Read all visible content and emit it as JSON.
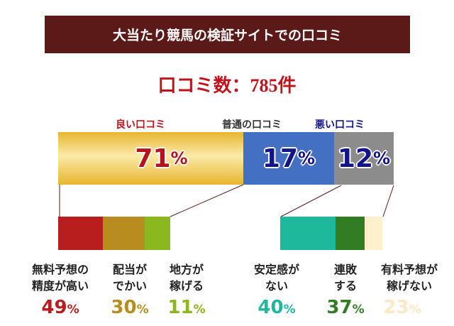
{
  "title": "大当たり競馬の検証サイトでの口コミ",
  "count_label": "口コミ数：785件",
  "main_bar": [
    {
      "label": "良い口コミ",
      "value": "71",
      "unit": "%",
      "color": "#e8b830",
      "label_color": "#c0141c",
      "text_color": "#b5121b"
    },
    {
      "label": "普通の口コミ",
      "value": "17",
      "unit": "%",
      "color": "#4470c4",
      "label_color": "#333333",
      "text_color": "#14148a"
    },
    {
      "label": "悪い口コミ",
      "value": "12",
      "unit": "%",
      "color": "#8c8c8c",
      "label_color": "#14148a",
      "text_color": "#14148a"
    }
  ],
  "good_breakdown": [
    {
      "label_line1": "無料予想の",
      "label_line2": "精度が高い",
      "value": "49",
      "unit": "%",
      "color": "#b81e1e"
    },
    {
      "label_line1": "配当が",
      "label_line2": "でかい",
      "value": "30",
      "unit": "%",
      "color": "#b88c1e"
    },
    {
      "label_line1": "地方が",
      "label_line2": "稼げる",
      "value": "11",
      "unit": "%",
      "color": "#8ab81e"
    }
  ],
  "bad_breakdown": [
    {
      "label_line1": "安定感が",
      "label_line2": "ない",
      "value": "40",
      "unit": "%",
      "color": "#1eb89c"
    },
    {
      "label_line1": "連敗",
      "label_line2": "する",
      "value": "37",
      "unit": "%",
      "color": "#327d23"
    },
    {
      "label_line1": "有料予想が",
      "label_line2": "稼げない",
      "value": "23",
      "unit": "%",
      "color": "#fff0cc"
    }
  ]
}
